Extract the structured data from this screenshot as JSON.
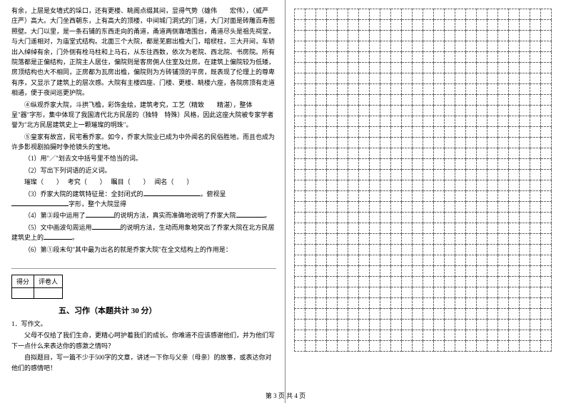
{
  "leftColumn": {
    "paragraphs": [
      "有余，上层是女墙式的垛口，还有更楼、眺阁点缀其间，显得气势（雄伟　　宏伟），（威严　庄严）高大。大门坐西朝东，上有高大的顶楼，中间城门洞式的门道，大门对面是砖雕百寿图照壁。大门以里，是一条石铺的东西走向的甬道，甬道两侧靠墙围台，甬道尽头是祖先祠堂，与大门遥相对，为庙堂式结构。北面三个大院，都是芜廊出檐大门，暗棂柱，三大开间，车轿出入绰绰有余，门外侧有栓马柱和上马石，从东往西数，依次为老院、西北院、书房院。所有院落都是正偏结构，正院主人居住，偏院则是客房佣人住室及灶房。在建筑上偏院较为低矮，房顶结构也大不相同，正房都为瓦房出檐，偏院则为方砖铺顶的平房，既表现了伦理上的尊卑有序，又显示了建筑上的层次感。大院有主楼四座、门楼、更楼、眺楼六座，各院房顶有走道相通，便于夜间巡更护院。",
      "④纵观乔家大院，斗拱飞檐，彩饰金绘，建筑考究，工艺（精致　　精湛），整体呈\"器\"字形，集中体现了我国清代北方民居的（独特　特殊）风格，因此这座大院被专家学者誉为\"北方民居建筑史上一颗璀璨的明珠\"。",
      "⑤皇家有故宫，民宅看乔家。如今，乔家大院业已成为中外闻名的民俗胜地，而且也成为许多影视剧拍摄时争抢镜头的宝地。"
    ],
    "questions": {
      "q1": "（1）用\"／\"划去文中括号里不恰当的词。",
      "q2": "（2）写出下列词语的近义词。",
      "q2_words": {
        "w1": "璀璨（　　）",
        "w2": "考究（　　）",
        "w3": "瞩目（　　）",
        "w4": "闻名（　　）"
      },
      "q3": "（3）乔家大院的建筑特征是：全封闭式的",
      "q3_mid": "，俯视呈",
      "q3_end": "字形，整个大院显得",
      "q4": "（4）第③段中运用了",
      "q4_end": "的说明方法，真实而准确地说明了乔家大院",
      "q5": "（5）文中画波句周运用",
      "q5_end": "的说明方法，生动而用象地突出了乔家大院在北方民居建筑史上的",
      "q6": "（6）第①段末句\"其中最为出名的就是乔家大院\"在全文结构上的作用是："
    },
    "scoreTable": {
      "left": "得分",
      "right": "评卷人"
    },
    "sectionFive": {
      "title": "五、习作（本题共计 30 分）",
      "item": "1．写作文。",
      "p1": "父母不仅给了我们生命，更精心呵护着我们的成长。你难道不应该感谢他们，并为他们写下一点什么来表达你的感激之情吗？",
      "p2": "自拟题目，写一篇不少于500字的文章，讲述一下你与父亲（母亲）的故事，或表达你对他们的感情吧！"
    }
  },
  "footer": "第 3 页 共 4 页",
  "grid": {
    "rows": 32,
    "cols": 24
  }
}
